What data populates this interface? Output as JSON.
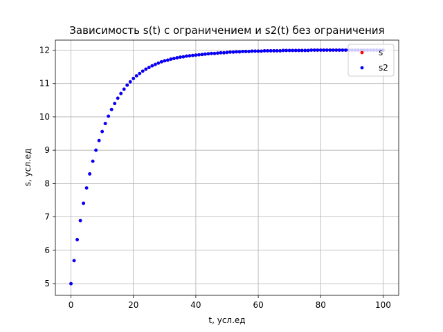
{
  "chart_data": {
    "type": "scatter",
    "title": "Зависимость s(t) с ограничением и s2(t) без ограничения",
    "xlabel": "t, усл.ед",
    "ylabel": "s, усл.ед",
    "xlim": [
      -5,
      105
    ],
    "ylim": [
      4.65,
      12.3
    ],
    "xticks": [
      0,
      20,
      40,
      60,
      80,
      100
    ],
    "yticks": [
      5,
      6,
      7,
      8,
      9,
      10,
      11,
      12
    ],
    "grid": true,
    "legend_position": "top-right",
    "series": [
      {
        "name": "s",
        "color": "#ff0000",
        "x": [
          0,
          1,
          2,
          3,
          4,
          5,
          6,
          7,
          8,
          9,
          10,
          11,
          12,
          13,
          14,
          15,
          16,
          17,
          18,
          19,
          20,
          21,
          22,
          23,
          24,
          25,
          26,
          27,
          28,
          29,
          30,
          31,
          32,
          33,
          34,
          35,
          36,
          37,
          38,
          39,
          40,
          41,
          42,
          43,
          44,
          45,
          46,
          47,
          48,
          49,
          50,
          51,
          52,
          53,
          54,
          55,
          56,
          57,
          58,
          59,
          60,
          61,
          62,
          63,
          64,
          65,
          66,
          67,
          68,
          69,
          70,
          71,
          72,
          73,
          74,
          75,
          76,
          77,
          78,
          79,
          80,
          81,
          82,
          83,
          84,
          85,
          86,
          87,
          88,
          89,
          90,
          91,
          92,
          93,
          94,
          95,
          96,
          97,
          98,
          99,
          100
        ],
        "y": [
          5.0,
          5.69,
          6.32,
          6.89,
          7.41,
          7.87,
          8.29,
          8.67,
          9.0,
          9.29,
          9.56,
          9.8,
          10.02,
          10.22,
          10.4,
          10.56,
          10.7,
          10.83,
          10.95,
          11.05,
          11.15,
          11.23,
          11.3,
          11.37,
          11.43,
          11.48,
          11.53,
          11.57,
          11.61,
          11.65,
          11.68,
          11.7,
          11.73,
          11.75,
          11.77,
          11.79,
          11.8,
          11.82,
          11.83,
          11.84,
          11.85,
          11.86,
          11.87,
          11.88,
          11.89,
          11.9,
          11.9,
          11.91,
          11.92,
          11.92,
          11.93,
          11.94,
          11.94,
          11.95,
          11.95,
          11.96,
          11.96,
          11.96,
          11.97,
          11.97,
          11.97,
          11.97,
          11.98,
          11.98,
          11.98,
          11.98,
          11.98,
          11.98,
          11.99,
          11.99,
          11.99,
          11.99,
          11.99,
          11.99,
          11.99,
          11.99,
          11.99,
          12.0,
          12.0,
          12.0,
          12.0,
          12.0,
          12.0,
          12.0,
          12.0,
          12.0,
          12.0,
          12.0,
          12.0,
          12.0,
          12.0,
          12.0,
          12.0,
          12.0,
          12.0,
          12.0,
          12.0,
          12.0,
          12.0,
          12.0,
          12.0
        ]
      },
      {
        "name": "s2",
        "color": "#0000ff",
        "x": [
          0,
          1,
          2,
          3,
          4,
          5,
          6,
          7,
          8,
          9,
          10,
          11,
          12,
          13,
          14,
          15,
          16,
          17,
          18,
          19,
          20,
          21,
          22,
          23,
          24,
          25,
          26,
          27,
          28,
          29,
          30,
          31,
          32,
          33,
          34,
          35,
          36,
          37,
          38,
          39,
          40,
          41,
          42,
          43,
          44,
          45,
          46,
          47,
          48,
          49,
          50,
          51,
          52,
          53,
          54,
          55,
          56,
          57,
          58,
          59,
          60,
          61,
          62,
          63,
          64,
          65,
          66,
          67,
          68,
          69,
          70,
          71,
          72,
          73,
          74,
          75,
          76,
          77,
          78,
          79,
          80,
          81,
          82,
          83,
          84,
          85,
          86,
          87,
          88,
          89,
          90,
          91,
          92,
          93,
          94,
          95,
          96,
          97,
          98,
          99,
          100
        ],
        "y": [
          5.0,
          5.69,
          6.32,
          6.89,
          7.41,
          7.87,
          8.29,
          8.67,
          9.0,
          9.29,
          9.56,
          9.8,
          10.02,
          10.22,
          10.4,
          10.56,
          10.7,
          10.83,
          10.95,
          11.05,
          11.15,
          11.23,
          11.3,
          11.37,
          11.43,
          11.48,
          11.53,
          11.57,
          11.61,
          11.65,
          11.68,
          11.7,
          11.73,
          11.75,
          11.77,
          11.79,
          11.8,
          11.82,
          11.83,
          11.84,
          11.85,
          11.86,
          11.87,
          11.88,
          11.89,
          11.9,
          11.9,
          11.91,
          11.92,
          11.92,
          11.93,
          11.94,
          11.94,
          11.95,
          11.95,
          11.96,
          11.96,
          11.96,
          11.97,
          11.97,
          11.97,
          11.97,
          11.98,
          11.98,
          11.98,
          11.98,
          11.98,
          11.98,
          11.99,
          11.99,
          11.99,
          11.99,
          11.99,
          11.99,
          11.99,
          11.99,
          11.99,
          12.0,
          12.0,
          12.0,
          12.0,
          12.0,
          12.0,
          12.0,
          12.0,
          12.0,
          12.0,
          12.0,
          12.0,
          12.0,
          12.0,
          12.0,
          12.0,
          12.0,
          12.0,
          12.0,
          12.0,
          12.0,
          12.0,
          12.0,
          12.0
        ]
      }
    ]
  }
}
